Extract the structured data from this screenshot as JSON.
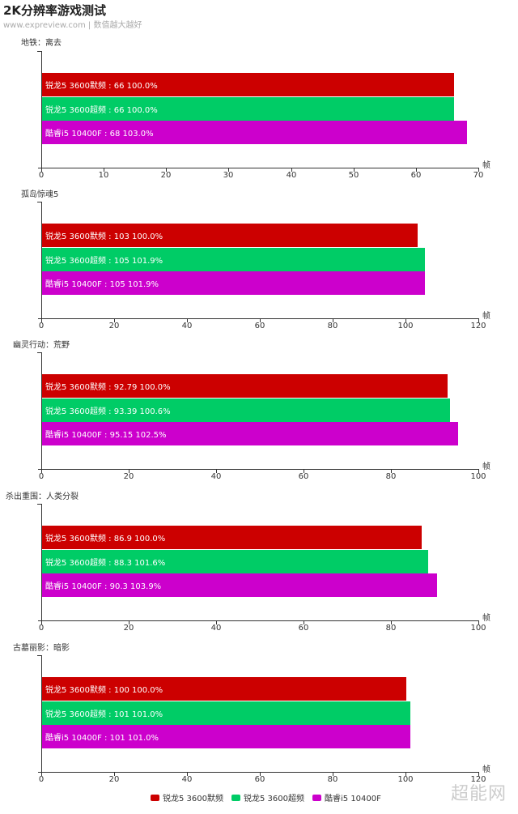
{
  "header": {
    "title": "2K分辨率游戏测试",
    "subtitle": "www.expreview.com | 数值越大越好"
  },
  "colors": {
    "series0": "#cc0000",
    "series1": "#00cc66",
    "series2": "#cc00cc"
  },
  "legend": [
    {
      "label": "锐龙5 3600默频",
      "color": "#cc0000"
    },
    {
      "label": "锐龙5 3600超频",
      "color": "#00cc66"
    },
    {
      "label": "酷睿i5 10400F",
      "color": "#cc00cc"
    }
  ],
  "watermark": "超能网",
  "chart_data": [
    {
      "type": "bar",
      "orientation": "horizontal",
      "title": "地铁：离去",
      "xlabel": "帧",
      "xlim": [
        0,
        70
      ],
      "xticks": [
        "0",
        "10",
        "20",
        "30",
        "40",
        "50",
        "60",
        "70"
      ],
      "categories": [
        "锐龙5 3600默频",
        "锐龙5 3600超频",
        "酷睿i5 10400F"
      ],
      "values": [
        66,
        66,
        68
      ],
      "percent": [
        "100.0%",
        "100.0%",
        "103.0%"
      ],
      "labels": [
        "锐龙5 3600默频 : 66  100.0%",
        "锐龙5 3600超频 : 66  100.0%",
        "酷睿i5 10400F : 68  103.0%"
      ]
    },
    {
      "type": "bar",
      "orientation": "horizontal",
      "title": "孤岛惊魂5",
      "xlabel": "帧",
      "xlim": [
        0,
        120
      ],
      "xticks": [
        "0",
        "20",
        "40",
        "60",
        "80",
        "100",
        "120"
      ],
      "categories": [
        "锐龙5 3600默频",
        "锐龙5 3600超频",
        "酷睿i5 10400F"
      ],
      "values": [
        103,
        105,
        105
      ],
      "percent": [
        "100.0%",
        "101.9%",
        "101.9%"
      ],
      "labels": [
        "锐龙5 3600默频 : 103  100.0%",
        "锐龙5 3600超频 : 105  101.9%",
        "酷睿i5 10400F : 105  101.9%"
      ]
    },
    {
      "type": "bar",
      "orientation": "horizontal",
      "title": "幽灵行动：荒野",
      "xlabel": "帧",
      "xlim": [
        0,
        100
      ],
      "xticks": [
        "0",
        "20",
        "40",
        "60",
        "80",
        "100"
      ],
      "categories": [
        "锐龙5 3600默频",
        "锐龙5 3600超频",
        "酷睿i5 10400F"
      ],
      "values": [
        92.79,
        93.39,
        95.15
      ],
      "percent": [
        "100.0%",
        "100.6%",
        "102.5%"
      ],
      "labels": [
        "锐龙5 3600默频 : 92.79  100.0%",
        "锐龙5 3600超频 : 93.39  100.6%",
        "酷睿i5 10400F : 95.15  102.5%"
      ]
    },
    {
      "type": "bar",
      "orientation": "horizontal",
      "title": "杀出重围：人类分裂",
      "xlabel": "帧",
      "xlim": [
        0,
        100
      ],
      "xticks": [
        "0",
        "20",
        "40",
        "60",
        "80",
        "100"
      ],
      "categories": [
        "锐龙5 3600默频",
        "锐龙5 3600超频",
        "酷睿i5 10400F"
      ],
      "values": [
        86.9,
        88.3,
        90.3
      ],
      "percent": [
        "100.0%",
        "101.6%",
        "103.9%"
      ],
      "labels": [
        "锐龙5 3600默频 : 86.9  100.0%",
        "锐龙5 3600超频 : 88.3  101.6%",
        "酷睿i5 10400F : 90.3  103.9%"
      ]
    },
    {
      "type": "bar",
      "orientation": "horizontal",
      "title": "古墓丽影：暗影",
      "xlabel": "帧",
      "xlim": [
        0,
        120
      ],
      "xticks": [
        "0",
        "20",
        "40",
        "60",
        "80",
        "100",
        "120"
      ],
      "categories": [
        "锐龙5 3600默频",
        "锐龙5 3600超频",
        "酷睿i5 10400F"
      ],
      "values": [
        100,
        101,
        101
      ],
      "percent": [
        "100.0%",
        "101.0%",
        "101.0%"
      ],
      "labels": [
        "锐龙5 3600默频 : 100  100.0%",
        "锐龙5 3600超频 : 101  101.0%",
        "酷睿i5 10400F : 101  101.0%"
      ]
    }
  ]
}
